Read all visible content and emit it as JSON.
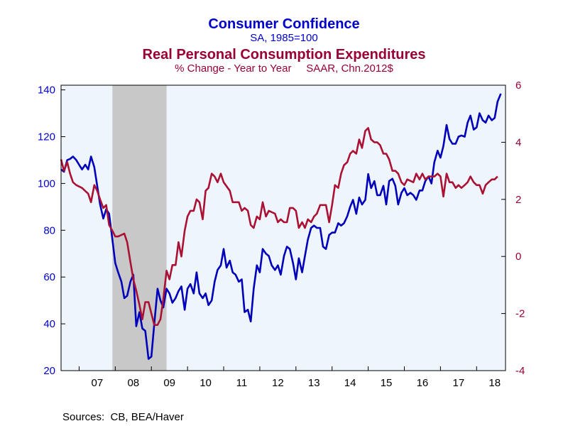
{
  "chart_data": {
    "type": "line",
    "title": "Consumer Confidence",
    "subtitle": "SA, 1985=100",
    "title2": "Real Personal Consumption Expenditures",
    "subtitle2": "% Change - Year to Year     SAAR, Chn.2012$",
    "source": "Sources:  CB, BEA/Haver",
    "x_ticks": [
      "07",
      "08",
      "09",
      "10",
      "11",
      "12",
      "13",
      "14",
      "15",
      "16",
      "17",
      "18"
    ],
    "x_range": [
      2006.5,
      2018.8
    ],
    "recession": [
      2007.92,
      2009.42
    ],
    "y_left": {
      "range": [
        20,
        142
      ],
      "ticks": [
        20,
        40,
        60,
        80,
        100,
        120,
        140
      ],
      "color": "#0000cc"
    },
    "y_right": {
      "range": [
        -4,
        6
      ],
      "ticks": [
        -4,
        -2,
        0,
        2,
        4,
        6
      ],
      "color": "#990033"
    },
    "series": [
      {
        "axis": "left",
        "color": "#0000bb",
        "points": [
          [
            2006.5,
            106
          ],
          [
            2006.58,
            105
          ],
          [
            2006.67,
            110
          ],
          [
            2006.75,
            110.5
          ],
          [
            2006.83,
            111.5
          ],
          [
            2006.92,
            110
          ],
          [
            2007.0,
            108
          ],
          [
            2007.08,
            106
          ],
          [
            2007.17,
            108
          ],
          [
            2007.25,
            106
          ],
          [
            2007.33,
            111.5
          ],
          [
            2007.42,
            107
          ],
          [
            2007.5,
            99
          ],
          [
            2007.58,
            91
          ],
          [
            2007.67,
            85
          ],
          [
            2007.75,
            89
          ],
          [
            2007.83,
            87
          ],
          [
            2007.92,
            76
          ],
          [
            2008.0,
            66
          ],
          [
            2008.08,
            62
          ],
          [
            2008.17,
            58
          ],
          [
            2008.25,
            51
          ],
          [
            2008.33,
            52
          ],
          [
            2008.42,
            58
          ],
          [
            2008.5,
            61
          ],
          [
            2008.58,
            39
          ],
          [
            2008.67,
            45
          ],
          [
            2008.75,
            38
          ],
          [
            2008.83,
            37
          ],
          [
            2008.92,
            25
          ],
          [
            2009.0,
            26
          ],
          [
            2009.08,
            40
          ],
          [
            2009.17,
            55
          ],
          [
            2009.25,
            50
          ],
          [
            2009.33,
            47
          ],
          [
            2009.42,
            55
          ],
          [
            2009.5,
            53
          ],
          [
            2009.58,
            49
          ],
          [
            2009.67,
            51
          ],
          [
            2009.75,
            54
          ],
          [
            2009.83,
            56
          ],
          [
            2009.92,
            46
          ],
          [
            2010.0,
            55
          ],
          [
            2010.08,
            57
          ],
          [
            2010.17,
            53
          ],
          [
            2010.25,
            62
          ],
          [
            2010.33,
            53
          ],
          [
            2010.42,
            51
          ],
          [
            2010.5,
            53
          ],
          [
            2010.58,
            48
          ],
          [
            2010.67,
            50
          ],
          [
            2010.75,
            58
          ],
          [
            2010.83,
            63
          ],
          [
            2010.92,
            65
          ],
          [
            2011.0,
            72
          ],
          [
            2011.08,
            64
          ],
          [
            2011.17,
            67
          ],
          [
            2011.25,
            62
          ],
          [
            2011.33,
            61
          ],
          [
            2011.42,
            58
          ],
          [
            2011.5,
            59
          ],
          [
            2011.58,
            45
          ],
          [
            2011.67,
            46
          ],
          [
            2011.75,
            41
          ],
          [
            2011.83,
            55
          ],
          [
            2011.92,
            65
          ],
          [
            2012.0,
            62
          ],
          [
            2012.08,
            72
          ],
          [
            2012.17,
            70
          ],
          [
            2012.25,
            69
          ],
          [
            2012.33,
            65
          ],
          [
            2012.42,
            63
          ],
          [
            2012.5,
            65
          ],
          [
            2012.58,
            61
          ],
          [
            2012.67,
            69
          ],
          [
            2012.75,
            73
          ],
          [
            2012.83,
            72
          ],
          [
            2012.92,
            66
          ],
          [
            2013.0,
            59
          ],
          [
            2013.08,
            68
          ],
          [
            2013.17,
            62
          ],
          [
            2013.25,
            69
          ],
          [
            2013.33,
            76
          ],
          [
            2013.42,
            81
          ],
          [
            2013.5,
            82
          ],
          [
            2013.58,
            81
          ],
          [
            2013.67,
            81
          ],
          [
            2013.75,
            73
          ],
          [
            2013.83,
            72
          ],
          [
            2013.92,
            78
          ],
          [
            2014.0,
            79
          ],
          [
            2014.08,
            79
          ],
          [
            2014.17,
            83
          ],
          [
            2014.25,
            82
          ],
          [
            2014.33,
            83
          ],
          [
            2014.42,
            86
          ],
          [
            2014.5,
            90
          ],
          [
            2014.58,
            93
          ],
          [
            2014.67,
            87
          ],
          [
            2014.75,
            94
          ],
          [
            2014.83,
            91
          ],
          [
            2014.92,
            93
          ],
          [
            2015.0,
            104
          ],
          [
            2015.08,
            98
          ],
          [
            2015.17,
            101
          ],
          [
            2015.25,
            95
          ],
          [
            2015.33,
            95
          ],
          [
            2015.42,
            99
          ],
          [
            2015.5,
            91
          ],
          [
            2015.58,
            101
          ],
          [
            2015.67,
            102
          ],
          [
            2015.75,
            99
          ],
          [
            2015.83,
            91
          ],
          [
            2015.92,
            96
          ],
          [
            2016.0,
            98
          ],
          [
            2016.08,
            95
          ],
          [
            2016.17,
            96
          ],
          [
            2016.25,
            95
          ],
          [
            2016.33,
            93
          ],
          [
            2016.42,
            97
          ],
          [
            2016.5,
            97
          ],
          [
            2016.58,
            101
          ],
          [
            2016.67,
            103
          ],
          [
            2016.75,
            100
          ],
          [
            2016.83,
            109
          ],
          [
            2016.92,
            114
          ],
          [
            2017.0,
            111
          ],
          [
            2017.08,
            116
          ],
          [
            2017.17,
            125
          ],
          [
            2017.25,
            119
          ],
          [
            2017.33,
            117
          ],
          [
            2017.42,
            117
          ],
          [
            2017.5,
            120
          ],
          [
            2017.58,
            120.5
          ],
          [
            2017.67,
            120
          ],
          [
            2017.75,
            126
          ],
          [
            2017.83,
            129
          ],
          [
            2017.92,
            123
          ],
          [
            2018.0,
            124
          ],
          [
            2018.08,
            130
          ],
          [
            2018.17,
            127
          ],
          [
            2018.25,
            126
          ],
          [
            2018.33,
            129
          ],
          [
            2018.42,
            127
          ],
          [
            2018.5,
            128
          ],
          [
            2018.58,
            135
          ],
          [
            2018.67,
            138.4
          ]
        ]
      },
      {
        "axis": "right",
        "color": "#aa1133",
        "points": [
          [
            2006.5,
            3.4
          ],
          [
            2006.58,
            3.0
          ],
          [
            2006.67,
            3.3
          ],
          [
            2006.75,
            2.9
          ],
          [
            2006.83,
            2.6
          ],
          [
            2006.92,
            2.5
          ],
          [
            2007.08,
            2.4
          ],
          [
            2007.25,
            2.2
          ],
          [
            2007.33,
            1.9
          ],
          [
            2007.42,
            2.5
          ],
          [
            2007.5,
            2.3
          ],
          [
            2007.58,
            2.0
          ],
          [
            2007.67,
            1.7
          ],
          [
            2007.75,
            1.8
          ],
          [
            2007.83,
            1.1
          ],
          [
            2007.92,
            0.9
          ],
          [
            2008.0,
            0.7
          ],
          [
            2008.08,
            0.7
          ],
          [
            2008.25,
            0.8
          ],
          [
            2008.33,
            0.5
          ],
          [
            2008.42,
            -0.2
          ],
          [
            2008.5,
            -0.8
          ],
          [
            2008.58,
            -1.2
          ],
          [
            2008.67,
            -1.7
          ],
          [
            2008.75,
            -2.2
          ],
          [
            2008.83,
            -1.6
          ],
          [
            2008.92,
            -1.6
          ],
          [
            2009.0,
            -2.0
          ],
          [
            2009.08,
            -2.4
          ],
          [
            2009.17,
            -2.4
          ],
          [
            2009.25,
            -2.2
          ],
          [
            2009.33,
            -1.5
          ],
          [
            2009.42,
            -0.5
          ],
          [
            2009.5,
            -0.8
          ],
          [
            2009.58,
            -0.3
          ],
          [
            2009.67,
            -0.3
          ],
          [
            2009.75,
            0.5
          ],
          [
            2009.83,
            0.0
          ],
          [
            2009.92,
            0.9
          ],
          [
            2010.0,
            1.4
          ],
          [
            2010.08,
            1.6
          ],
          [
            2010.17,
            1.6
          ],
          [
            2010.25,
            2.0
          ],
          [
            2010.33,
            1.9
          ],
          [
            2010.42,
            1.3
          ],
          [
            2010.5,
            2.3
          ],
          [
            2010.58,
            2.4
          ],
          [
            2010.67,
            2.9
          ],
          [
            2010.75,
            2.8
          ],
          [
            2010.83,
            2.6
          ],
          [
            2010.92,
            2.9
          ],
          [
            2011.0,
            2.6
          ],
          [
            2011.17,
            2.3
          ],
          [
            2011.25,
            1.9
          ],
          [
            2011.42,
            1.9
          ],
          [
            2011.5,
            1.6
          ],
          [
            2011.58,
            1.7
          ],
          [
            2011.67,
            1.6
          ],
          [
            2011.75,
            1.1
          ],
          [
            2011.83,
            1.0
          ],
          [
            2011.92,
            1.4
          ],
          [
            2012.0,
            1.3
          ],
          [
            2012.08,
            1.9
          ],
          [
            2012.17,
            1.4
          ],
          [
            2012.25,
            1.6
          ],
          [
            2012.42,
            1.5
          ],
          [
            2012.5,
            1.2
          ],
          [
            2012.58,
            1.3
          ],
          [
            2012.67,
            1.2
          ],
          [
            2012.75,
            1.2
          ],
          [
            2012.83,
            1.7
          ],
          [
            2012.92,
            1.7
          ],
          [
            2013.0,
            1.6
          ],
          [
            2013.08,
            1.0
          ],
          [
            2013.17,
            1.2
          ],
          [
            2013.25,
            1.0
          ],
          [
            2013.33,
            1.3
          ],
          [
            2013.42,
            1.2
          ],
          [
            2013.5,
            1.4
          ],
          [
            2013.58,
            1.5
          ],
          [
            2013.67,
            1.8
          ],
          [
            2013.75,
            1.8
          ],
          [
            2013.83,
            1.8
          ],
          [
            2013.92,
            1.2
          ],
          [
            2014.0,
            1.8
          ],
          [
            2014.08,
            2.5
          ],
          [
            2014.17,
            2.4
          ],
          [
            2014.25,
            2.9
          ],
          [
            2014.33,
            3.2
          ],
          [
            2014.42,
            3.3
          ],
          [
            2014.5,
            3.6
          ],
          [
            2014.58,
            3.7
          ],
          [
            2014.67,
            3.6
          ],
          [
            2014.75,
            4.1
          ],
          [
            2014.83,
            3.8
          ],
          [
            2014.92,
            4.4
          ],
          [
            2015.0,
            4.5
          ],
          [
            2015.08,
            4.1
          ],
          [
            2015.17,
            4.0
          ],
          [
            2015.25,
            4.0
          ],
          [
            2015.33,
            3.9
          ],
          [
            2015.42,
            3.6
          ],
          [
            2015.5,
            3.6
          ],
          [
            2015.58,
            3.4
          ],
          [
            2015.67,
            3.0
          ],
          [
            2015.75,
            3.0
          ],
          [
            2015.83,
            2.9
          ],
          [
            2015.92,
            2.6
          ],
          [
            2016.0,
            2.5
          ],
          [
            2016.08,
            2.7
          ],
          [
            2016.25,
            2.6
          ],
          [
            2016.33,
            2.9
          ],
          [
            2016.42,
            2.7
          ],
          [
            2016.5,
            2.9
          ],
          [
            2016.58,
            2.7
          ],
          [
            2016.67,
            2.8
          ],
          [
            2016.83,
            2.8
          ],
          [
            2016.92,
            2.9
          ],
          [
            2017.0,
            2.8
          ],
          [
            2017.08,
            2.1
          ],
          [
            2017.17,
            2.9
          ],
          [
            2017.25,
            2.6
          ],
          [
            2017.33,
            2.6
          ],
          [
            2017.42,
            2.4
          ],
          [
            2017.5,
            2.5
          ],
          [
            2017.58,
            2.4
          ],
          [
            2017.67,
            2.5
          ],
          [
            2017.75,
            2.6
          ],
          [
            2017.83,
            2.8
          ],
          [
            2017.92,
            2.6
          ],
          [
            2018.0,
            2.5
          ],
          [
            2018.08,
            2.5
          ],
          [
            2018.17,
            2.2
          ],
          [
            2018.25,
            2.5
          ],
          [
            2018.33,
            2.6
          ],
          [
            2018.42,
            2.7
          ],
          [
            2018.5,
            2.7
          ],
          [
            2018.58,
            2.8
          ]
        ]
      }
    ],
    "grid": false,
    "plot_background": "#eef5fd"
  }
}
